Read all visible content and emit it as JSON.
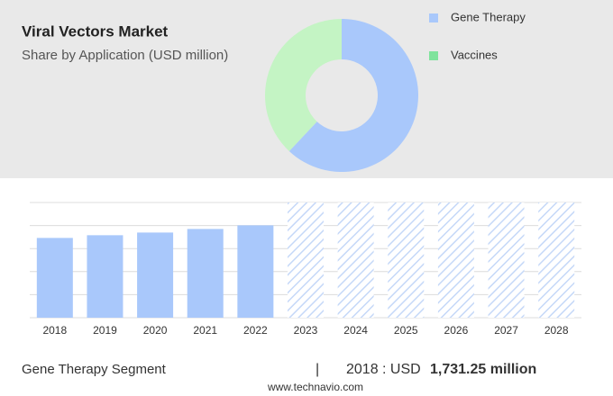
{
  "chart_data": [
    {
      "type": "donut",
      "title": "Viral Vectors Market",
      "subtitle": "Share by Application (USD million)",
      "categories": [
        "Gene Therapy",
        "Vaccines"
      ],
      "values": [
        62,
        38
      ],
      "colors": [
        "#a9c8fb",
        "#c4f4c4"
      ],
      "legend_colors": [
        "#a9c8fb",
        "#7fe39c"
      ],
      "legend": "right"
    },
    {
      "type": "bar",
      "categories": [
        "2018",
        "2019",
        "2020",
        "2021",
        "2022",
        "2023",
        "2024",
        "2025",
        "2026",
        "2027",
        "2028"
      ],
      "values": [
        1731.25,
        1790,
        1848,
        1926,
        2004,
        null,
        null,
        null,
        null,
        null,
        null
      ],
      "color": "#a9c8fb",
      "forecast_color": "#c5d8f8",
      "ylim": [
        0,
        2500
      ],
      "yticks": [
        0,
        500,
        1000,
        1500,
        2000,
        2500
      ],
      "grid": true
    }
  ],
  "footer": {
    "segment": "Gene Therapy Segment",
    "separator": "|",
    "year_label": "2018 : USD",
    "value_label": "1,731.25 million"
  },
  "source": "www.technavio.com"
}
